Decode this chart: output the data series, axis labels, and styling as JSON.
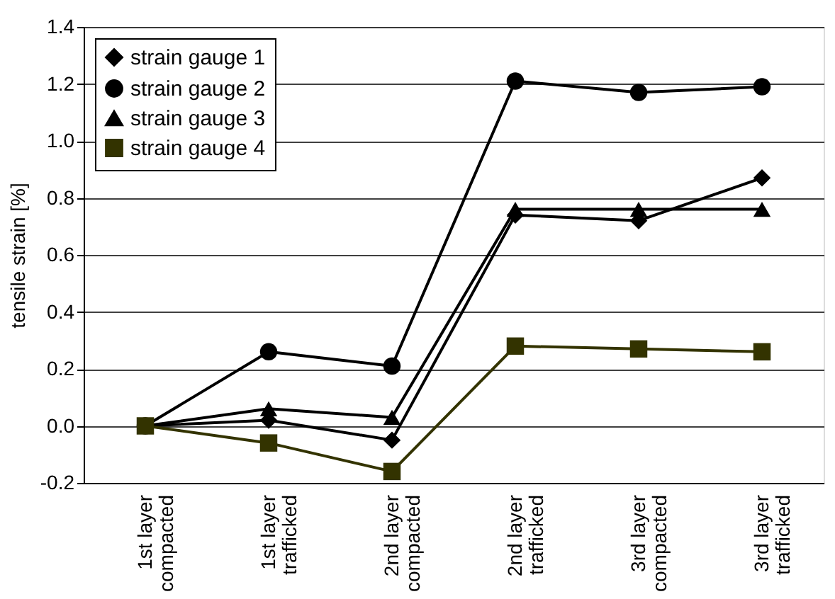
{
  "chart_data": {
    "type": "line",
    "ylabel": "tensile strain [%]",
    "categories": [
      "1st layer\ncompacted",
      "1st layer\ntrafficked",
      "2nd layer\ncompacted",
      "2nd layer\ntrafficked",
      "3rd layer\ncompacted",
      "3rd layer\ntrafficked"
    ],
    "series": [
      {
        "name": "strain gauge 1",
        "color": "#000000",
        "marker": "diamond",
        "values": [
          0,
          0.02,
          -0.05,
          0.74,
          0.72,
          0.87
        ]
      },
      {
        "name": "strain gauge 2",
        "color": "#000000",
        "marker": "circle",
        "values": [
          0,
          0.26,
          0.21,
          1.21,
          1.17,
          1.19
        ]
      },
      {
        "name": "strain gauge 3",
        "color": "#000000",
        "marker": "triangle",
        "values": [
          0,
          0.06,
          0.03,
          0.76,
          0.76,
          0.76
        ]
      },
      {
        "name": "strain gauge 4",
        "color": "#333300",
        "marker": "square",
        "values": [
          0,
          -0.06,
          -0.16,
          0.28,
          0.27,
          0.26
        ]
      }
    ],
    "ylim": [
      -0.2,
      1.4
    ],
    "yticks": [
      -0.2,
      {
        "value": 0,
        "label": "0.0"
      },
      0.2,
      0.4,
      0.6,
      0.8,
      {
        "value": 1,
        "label": "1.0"
      },
      1.2,
      1.4
    ],
    "grid": "y",
    "legend": "top left",
    "line_style": "solid"
  }
}
